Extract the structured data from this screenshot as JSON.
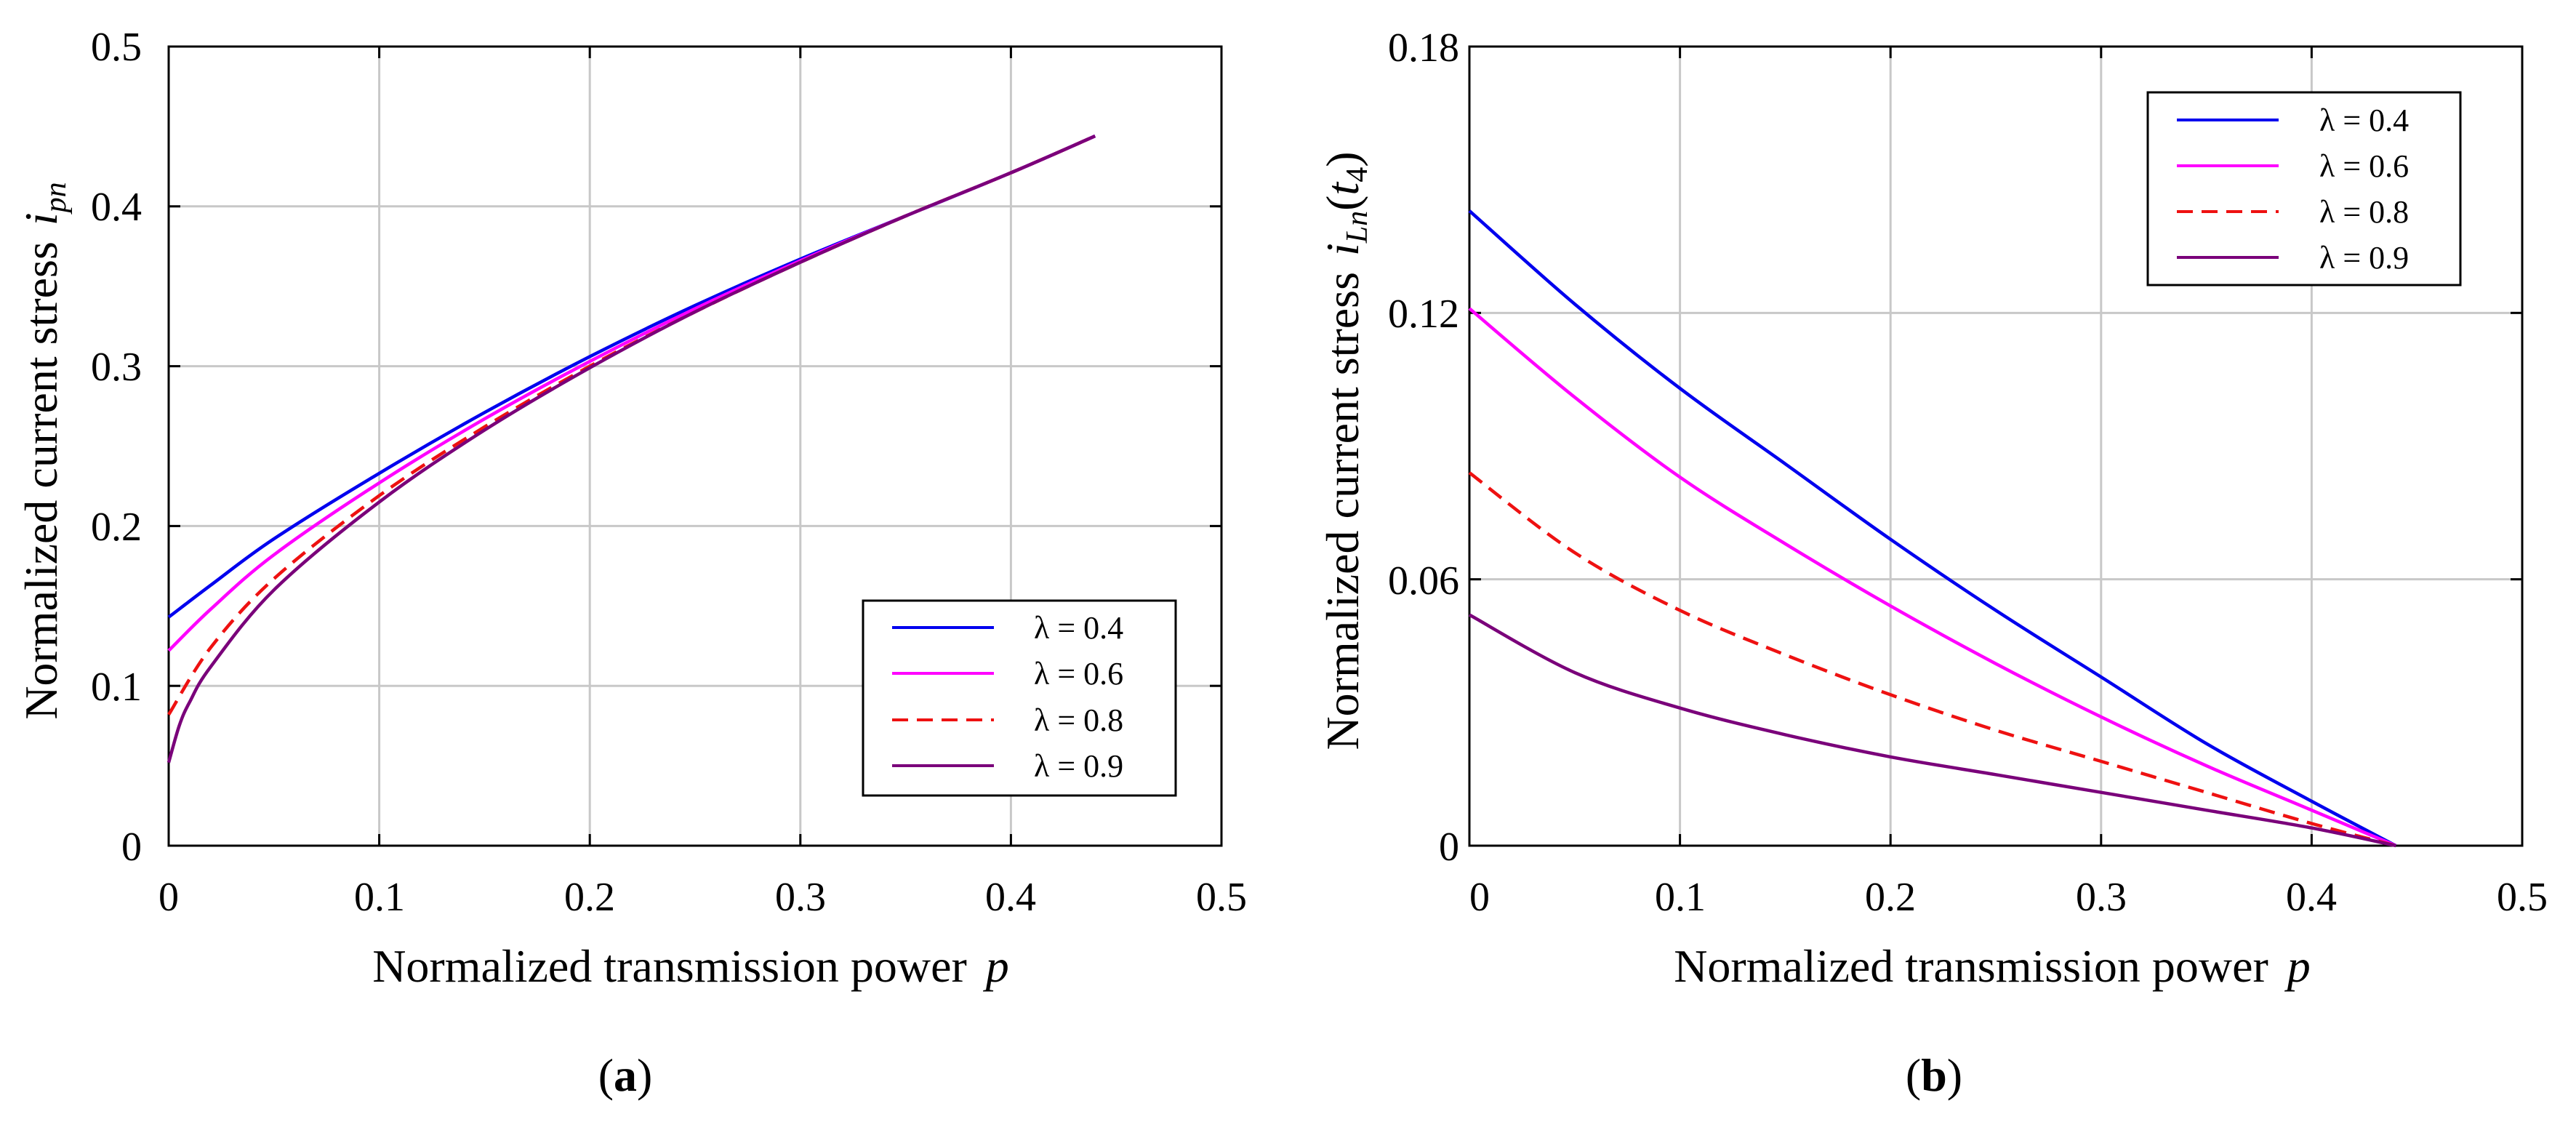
{
  "panel_a_label": "a",
  "panel_b_label": "b",
  "chart_data": [
    {
      "type": "line",
      "panel": "(a)",
      "title": "",
      "xlabel": "Normalized transmission power",
      "xlabel_symbol": "p",
      "ylabel": "Normalized current stress",
      "ylabel_symbol": "i",
      "ylabel_subscript": "pn",
      "xlim": [
        0,
        0.5
      ],
      "ylim": [
        0,
        0.5
      ],
      "xticks": [
        0,
        0.1,
        0.2,
        0.3,
        0.4,
        0.5
      ],
      "xtick_labels": [
        "0",
        "0.1",
        "0.2",
        "0.3",
        "0.4",
        "0.5"
      ],
      "yticks": [
        0,
        0.1,
        0.2,
        0.3,
        0.4,
        0.5
      ],
      "ytick_labels": [
        "0",
        "0.1",
        "0.2",
        "0.3",
        "0.4",
        "0.5"
      ],
      "grid": true,
      "legend_position": "bottom-right",
      "series": [
        {
          "name": "λ = 0.4",
          "color": "#0000ee",
          "dash": "solid",
          "x": [
            0,
            0.02,
            0.05,
            0.1,
            0.15,
            0.2,
            0.25,
            0.3,
            0.35,
            0.4,
            0.44
          ],
          "y": [
            0.143,
            0.163,
            0.192,
            0.233,
            0.271,
            0.306,
            0.338,
            0.367,
            0.394,
            0.421,
            0.444
          ]
        },
        {
          "name": "λ = 0.6",
          "color": "#ff00ff",
          "dash": "solid",
          "x": [
            0,
            0.02,
            0.05,
            0.1,
            0.15,
            0.2,
            0.25,
            0.3,
            0.35,
            0.4,
            0.44
          ],
          "y": [
            0.122,
            0.148,
            0.182,
            0.227,
            0.267,
            0.303,
            0.336,
            0.366,
            0.394,
            0.421,
            0.444
          ]
        },
        {
          "name": "λ = 0.8",
          "color": "#ee1111",
          "dash": "dashed",
          "x": [
            0,
            0.02,
            0.05,
            0.1,
            0.15,
            0.2,
            0.25,
            0.3,
            0.35,
            0.4,
            0.44
          ],
          "y": [
            0.082,
            0.124,
            0.167,
            0.219,
            0.262,
            0.3,
            0.334,
            0.365,
            0.394,
            0.421,
            0.444
          ]
        },
        {
          "name": "λ = 0.9",
          "color": "#7a007a",
          "dash": "solid",
          "x": [
            0,
            0.005,
            0.01,
            0.02,
            0.05,
            0.1,
            0.15,
            0.2,
            0.25,
            0.3,
            0.35,
            0.4,
            0.44
          ],
          "y": [
            0.052,
            0.075,
            0.09,
            0.112,
            0.16,
            0.215,
            0.26,
            0.299,
            0.334,
            0.365,
            0.394,
            0.421,
            0.444
          ]
        }
      ]
    },
    {
      "type": "line",
      "panel": "(b)",
      "title": "",
      "xlabel": "Normalized transmission power",
      "xlabel_symbol": "p",
      "ylabel": "Normalized current stress",
      "ylabel_symbol": "i",
      "ylabel_subscript": "Ln",
      "ylabel_arg": "t",
      "ylabel_arg_subscript": "4",
      "xlim": [
        0,
        0.5
      ],
      "ylim": [
        0,
        0.18
      ],
      "xticks": [
        0,
        0.1,
        0.2,
        0.3,
        0.4,
        0.5
      ],
      "xtick_labels": [
        "0",
        "0.1",
        "0.2",
        "0.3",
        "0.4",
        "0.5"
      ],
      "yticks": [
        0,
        0.06,
        0.12,
        0.18
      ],
      "ytick_labels": [
        "0",
        "0.06",
        "0.12",
        "0.18"
      ],
      "grid": true,
      "legend_position": "top-right",
      "series": [
        {
          "name": "λ = 0.4",
          "color": "#0000ee",
          "dash": "solid",
          "x": [
            0,
            0.05,
            0.1,
            0.15,
            0.2,
            0.25,
            0.3,
            0.35,
            0.4,
            0.44
          ],
          "y": [
            0.143,
            0.122,
            0.103,
            0.086,
            0.069,
            0.053,
            0.038,
            0.023,
            0.01,
            0.0
          ]
        },
        {
          "name": "λ = 0.6",
          "color": "#ff00ff",
          "dash": "solid",
          "x": [
            0,
            0.05,
            0.1,
            0.15,
            0.2,
            0.25,
            0.3,
            0.35,
            0.4,
            0.44
          ],
          "y": [
            0.121,
            0.101,
            0.083,
            0.068,
            0.054,
            0.041,
            0.029,
            0.018,
            0.008,
            0.0
          ]
        },
        {
          "name": "λ = 0.8",
          "color": "#ee1111",
          "dash": "dashed",
          "x": [
            0,
            0.05,
            0.1,
            0.15,
            0.2,
            0.25,
            0.3,
            0.35,
            0.4,
            0.44
          ],
          "y": [
            0.084,
            0.066,
            0.053,
            0.043,
            0.034,
            0.026,
            0.019,
            0.012,
            0.005,
            0.0
          ]
        },
        {
          "name": "λ = 0.9",
          "color": "#7a007a",
          "dash": "solid",
          "x": [
            0,
            0.05,
            0.1,
            0.15,
            0.2,
            0.25,
            0.3,
            0.35,
            0.4,
            0.44
          ],
          "y": [
            0.052,
            0.039,
            0.031,
            0.025,
            0.02,
            0.016,
            0.012,
            0.008,
            0.004,
            0.0
          ]
        }
      ]
    }
  ]
}
